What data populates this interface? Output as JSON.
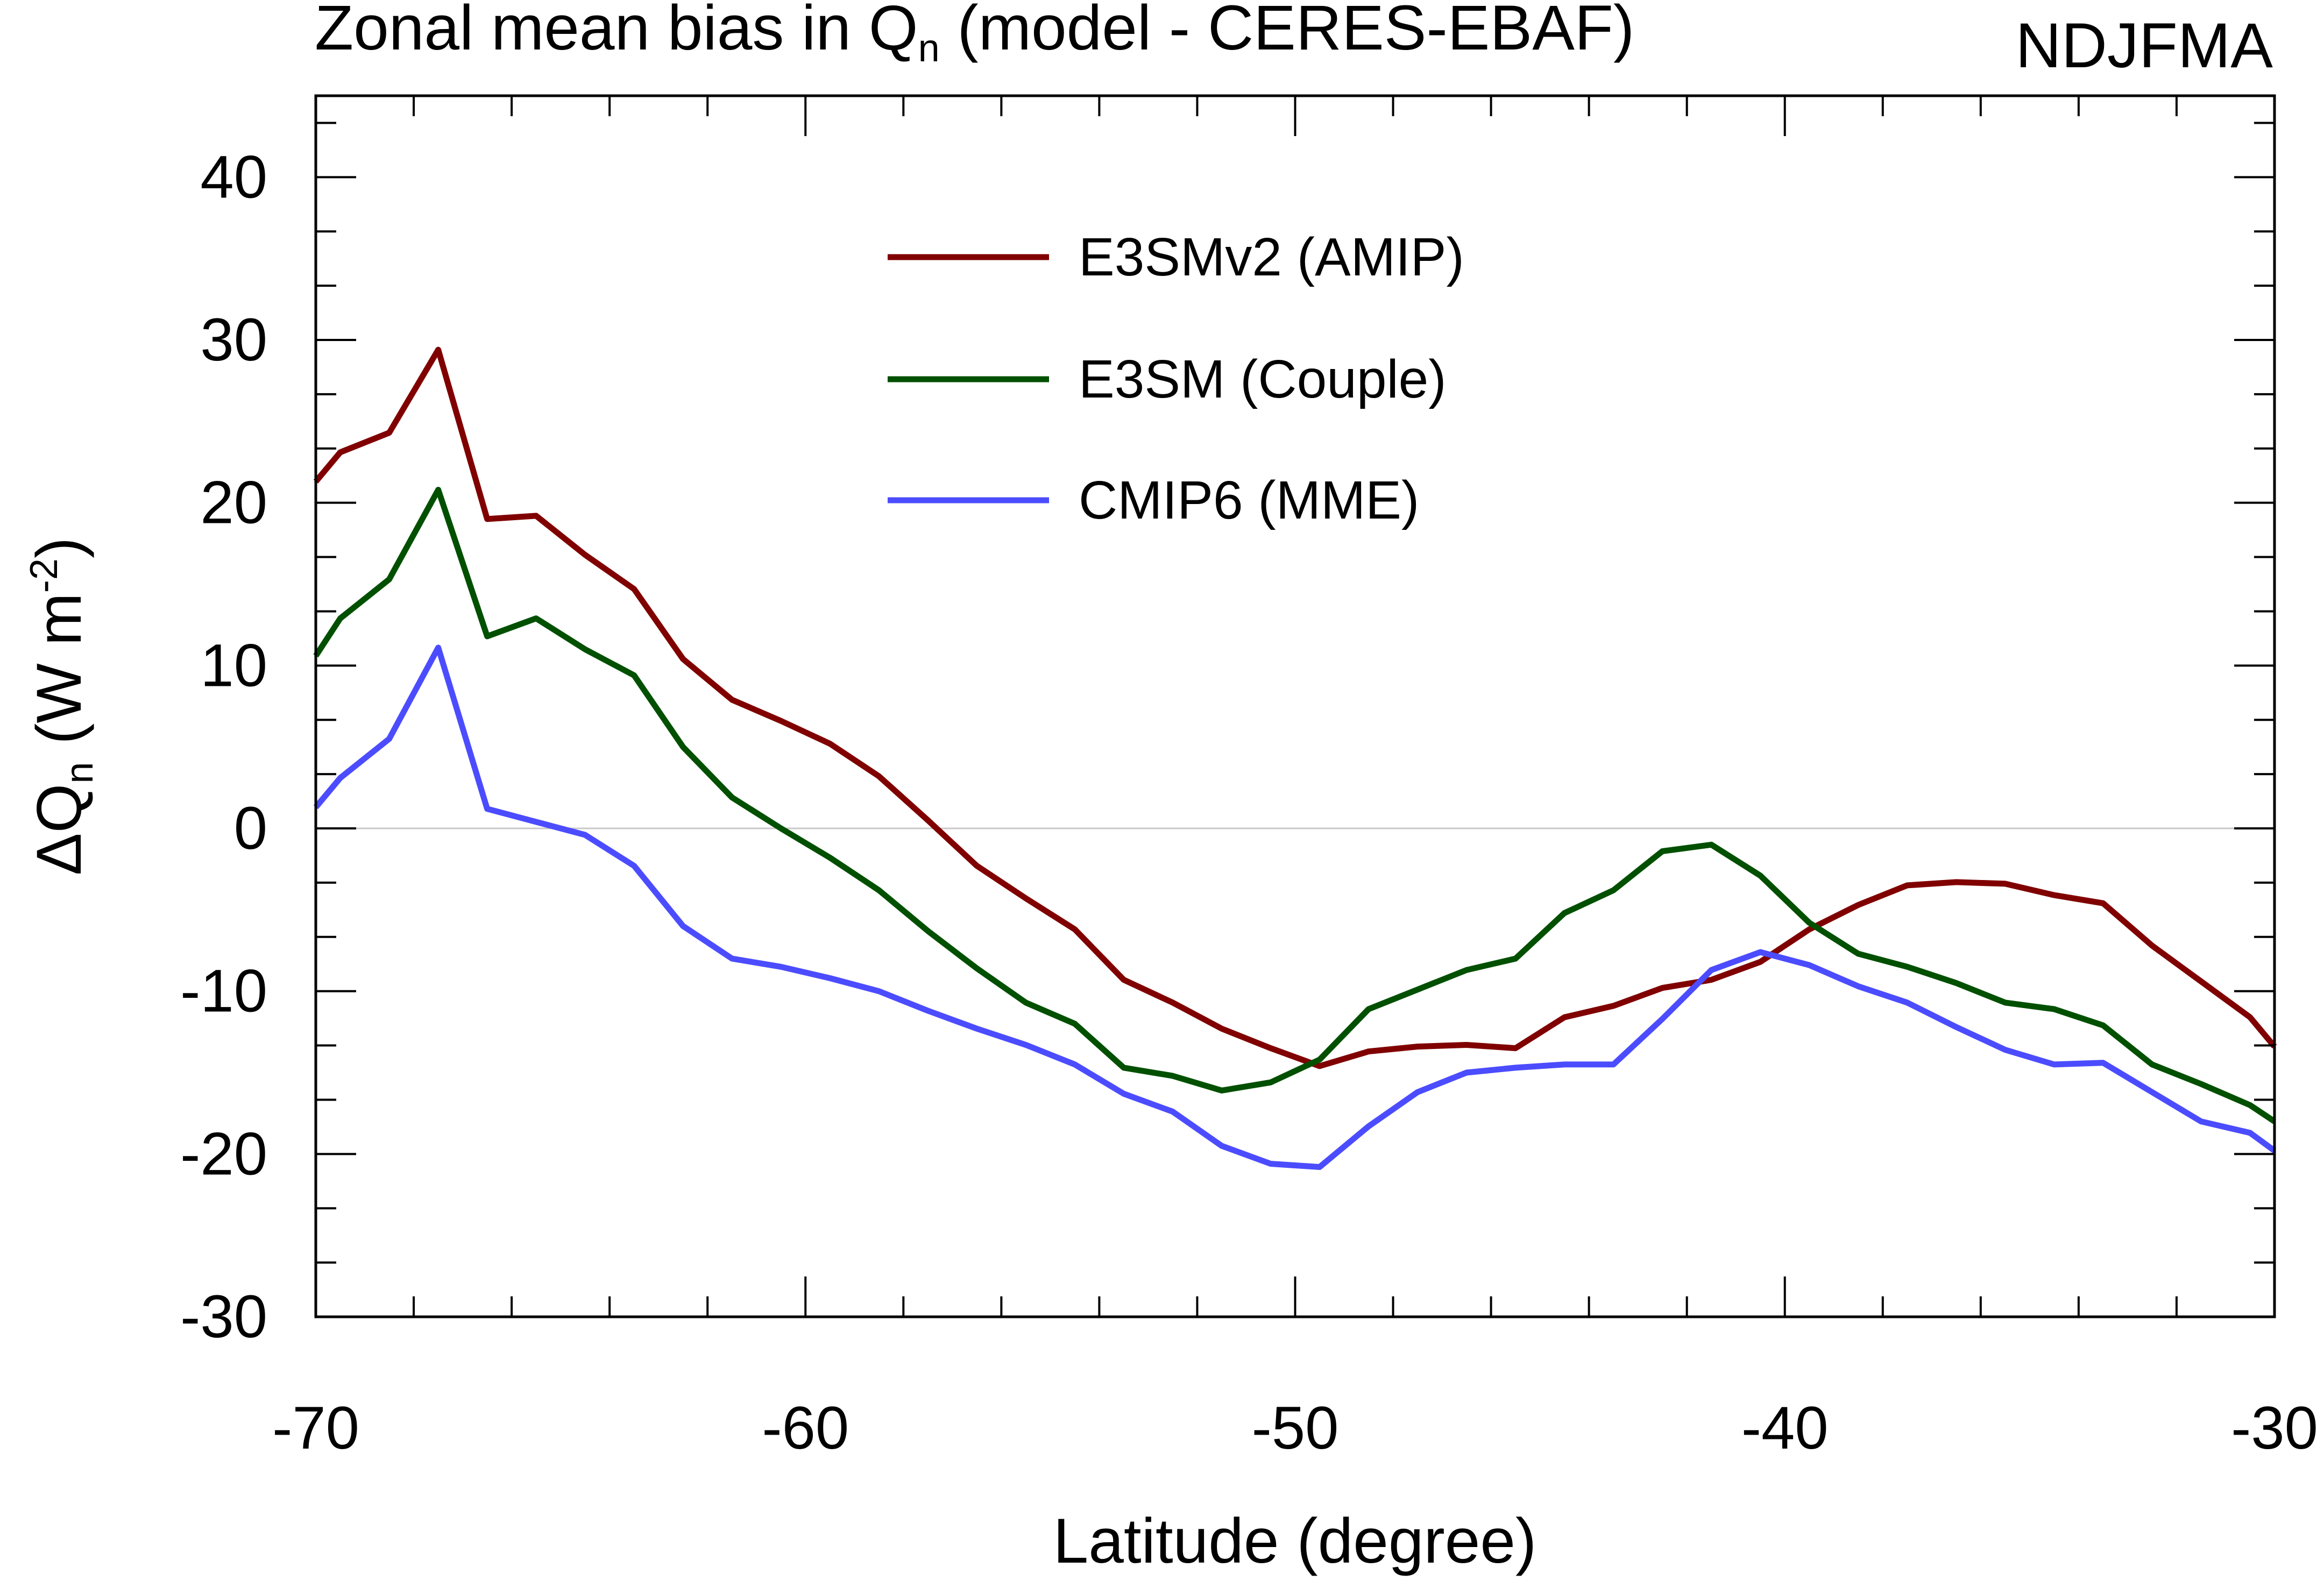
{
  "chart_data": {
    "type": "line",
    "title_main": "Zonal mean bias in Q",
    "title_sub": "n",
    "title_rest": " (model - CERES-EBAF)",
    "season": "NDJFMA",
    "xlabel": "Latitude (degree)",
    "ylabel_delta": "ΔQ",
    "ylabel_sub": "n",
    "ylabel_unit": " (W m",
    "ylabel_sup": "-2",
    "ylabel_close": ")",
    "xlim": [
      -70,
      -30
    ],
    "ylim": [
      -30,
      45
    ],
    "xticks": [
      -70,
      -60,
      -50,
      -40,
      -30
    ],
    "yticks": [
      -30,
      -20,
      -10,
      0,
      10,
      20,
      30,
      40
    ],
    "zero_line": true,
    "legend_position": "top-center",
    "x": [
      -70,
      -69.5,
      -68.5,
      -67.5,
      -66.5,
      -65.5,
      -64.5,
      -63.5,
      -62.5,
      -61.5,
      -60.5,
      -59.5,
      -58.5,
      -57.5,
      -56.5,
      -55.5,
      -54.5,
      -53.5,
      -52.5,
      -51.5,
      -50.5,
      -49.5,
      -48.5,
      -47.5,
      -46.5,
      -45.5,
      -44.5,
      -43.5,
      -42.5,
      -41.5,
      -40.5,
      -39.5,
      -38.5,
      -37.5,
      -36.5,
      -35.5,
      -34.5,
      -33.5,
      -32.5,
      -31.5,
      -30.5,
      -30
    ],
    "series": [
      {
        "name": "E3SMv2 (AMIP)",
        "color": "#800000",
        "values": [
          21.3,
          23.1,
          24.3,
          29.4,
          19.0,
          19.2,
          16.8,
          14.7,
          10.4,
          7.9,
          6.6,
          5.2,
          3.2,
          0.5,
          -2.3,
          -4.3,
          -6.2,
          -9.3,
          -10.7,
          -12.3,
          -13.5,
          -14.6,
          -13.7,
          -13.4,
          -13.3,
          -13.5,
          -11.6,
          -10.9,
          -9.8,
          -9.3,
          -8.2,
          -6.2,
          -4.7,
          -3.5,
          -3.3,
          -3.4,
          -4.1,
          -4.6,
          -7.2,
          -9.4,
          -11.6,
          -13.4
        ]
      },
      {
        "name": "E3SM (Couple)",
        "color": "#005000",
        "values": [
          10.6,
          12.9,
          15.3,
          20.8,
          11.8,
          12.9,
          11.0,
          9.4,
          5.0,
          1.9,
          0.0,
          -1.8,
          -3.8,
          -6.3,
          -8.6,
          -10.7,
          -12.0,
          -14.7,
          -15.2,
          -16.1,
          -15.6,
          -14.2,
          -11.1,
          -9.9,
          -8.7,
          -8.0,
          -5.2,
          -3.8,
          -1.4,
          -1.0,
          -2.9,
          -5.8,
          -7.7,
          -8.5,
          -9.5,
          -10.7,
          -11.1,
          -12.1,
          -14.5,
          -15.7,
          -17.0,
          -18.0
        ]
      },
      {
        "name": "CMIP6 (MME)",
        "color": "#4c4cff",
        "values": [
          1.3,
          3.1,
          5.5,
          11.1,
          1.2,
          0.4,
          -0.4,
          -2.3,
          -6.0,
          -8.0,
          -8.5,
          -9.2,
          -10.0,
          -11.2,
          -12.3,
          -13.3,
          -14.5,
          -16.3,
          -17.4,
          -19.5,
          -20.6,
          -20.8,
          -18.3,
          -16.2,
          -15.0,
          -14.7,
          -14.5,
          -14.5,
          -11.7,
          -8.7,
          -7.6,
          -8.4,
          -9.7,
          -10.7,
          -12.2,
          -13.6,
          -14.5,
          -14.4,
          -16.2,
          -18.0,
          -18.7,
          -19.8
        ]
      }
    ]
  }
}
